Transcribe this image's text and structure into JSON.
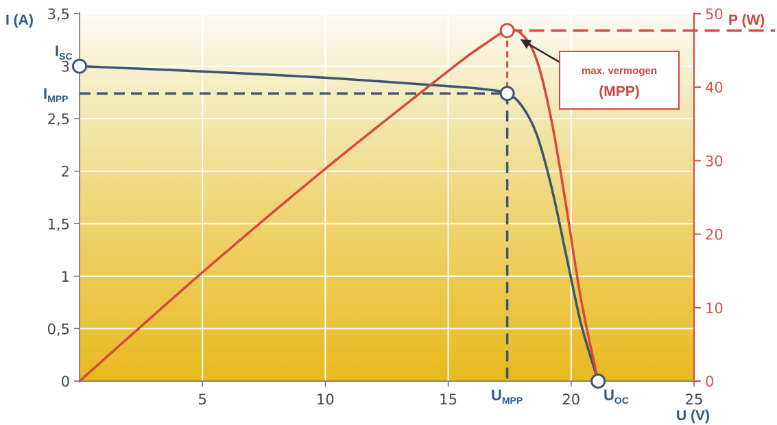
{
  "chart_data": {
    "type": "line",
    "x_axis": {
      "label": "U (V)",
      "range": [
        0,
        25
      ],
      "ticks": [
        5,
        10,
        15,
        20,
        25
      ],
      "tick_labels": [
        "5",
        "10",
        "15",
        "20",
        "25"
      ]
    },
    "y_axis_left": {
      "label": "I (A)",
      "range": [
        0,
        3.5
      ],
      "ticks": [
        0,
        0.5,
        1,
        1.5,
        2,
        2.5,
        3,
        3.5
      ],
      "tick_labels": [
        "0",
        "0,5",
        "1",
        "1,5",
        "2",
        "2,5",
        "3",
        "3,5"
      ]
    },
    "y_axis_right": {
      "label": "P (W)",
      "range": [
        0,
        50
      ],
      "ticks": [
        0,
        10,
        20,
        30,
        40,
        50
      ],
      "tick_labels": [
        "0",
        "10",
        "20",
        "30",
        "40",
        "50"
      ]
    },
    "grid": true,
    "series": [
      {
        "axis": "left",
        "color": "#3b5670",
        "x": [
          0,
          5,
          10,
          15,
          16.5,
          17.4,
          18.0,
          18.6,
          19.2,
          19.8,
          20.4,
          21.1
        ],
        "y": [
          3.0,
          2.95,
          2.89,
          2.81,
          2.78,
          2.74,
          2.62,
          2.35,
          1.85,
          1.2,
          0.55,
          0.0
        ]
      },
      {
        "axis": "right",
        "color": "#d9473e",
        "x": [
          0,
          5,
          10,
          15,
          16.5,
          17.4,
          18.0,
          18.6,
          19.2,
          19.8,
          20.4,
          21.1
        ],
        "y": [
          0,
          14.8,
          28.9,
          42.2,
          45.9,
          47.7,
          47.2,
          43.7,
          35.5,
          23.8,
          11.2,
          0
        ]
      }
    ],
    "points": [
      {
        "label": "I",
        "sub": "SC",
        "x": 0,
        "y": 3.0,
        "axis": "left"
      },
      {
        "label": "I",
        "sub": "MPP",
        "x": 17.4,
        "y": 2.74,
        "axis": "left"
      },
      {
        "label": "U",
        "sub": "MPP",
        "x": 17.4,
        "y": 0,
        "axis": "left"
      },
      {
        "label": "U",
        "sub": "OC",
        "x": 21.1,
        "y": 0,
        "axis": "left"
      },
      {
        "x": 17.4,
        "y": 47.7,
        "axis": "right"
      }
    ],
    "annotation": {
      "line1": "max. vermogen",
      "line2": "(MPP)"
    }
  },
  "colors": {
    "current": "#3b5670",
    "power": "#d9473e",
    "label_blue": "#2e5a86",
    "label_red": "#c94840",
    "bg_top": "#fbf9f0",
    "bg_bottom": "#e9bd26"
  }
}
